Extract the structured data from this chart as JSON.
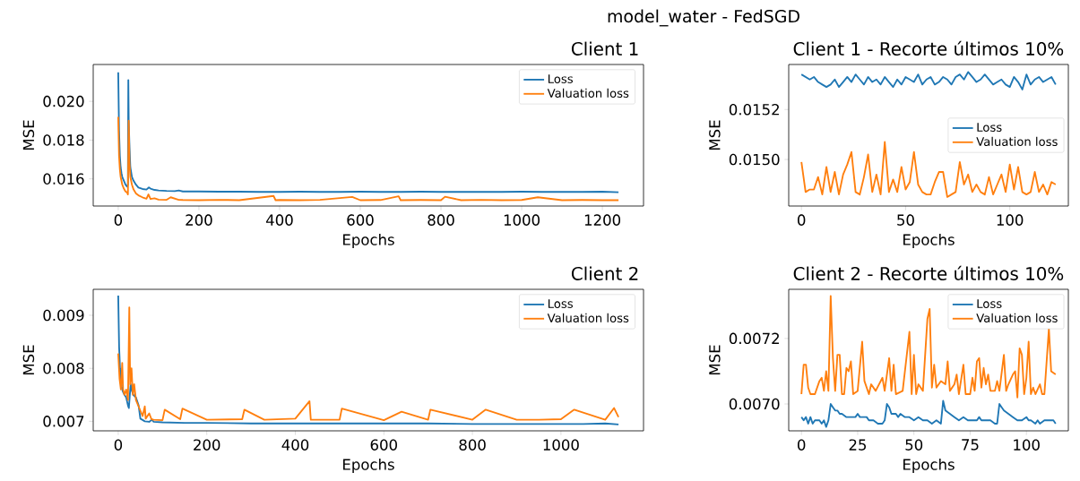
{
  "chart_data": [
    {
      "type": "line",
      "title": "Client 1",
      "xlabel": "Epochs",
      "ylabel": "MSE",
      "annotations": [
        "model_water - FedSGD"
      ],
      "legend": "top right",
      "xlim": [
        -62,
        1302
      ],
      "ylim": [
        0.0146,
        0.0219
      ],
      "xticks": [
        0,
        200,
        400,
        600,
        800,
        1000,
        1200
      ],
      "yticks": [
        0.016,
        0.018,
        {
          "value": 0.02,
          "label": "0.020"
        }
      ],
      "series": [
        {
          "name": "Loss",
          "color": "#1f77b4",
          "x": [
            0,
            2,
            4,
            6,
            8,
            10,
            14,
            18,
            22,
            24,
            25,
            26,
            28,
            30,
            34,
            38,
            44,
            50,
            60,
            70,
            76,
            80,
            90,
            100,
            120,
            140,
            150,
            160,
            200,
            250,
            300,
            350,
            400,
            450,
            500,
            550,
            600,
            650,
            700,
            750,
            800,
            850,
            900,
            950,
            1000,
            1050,
            1100,
            1150,
            1200,
            1240
          ],
          "values": [
            0.0215,
            0.0185,
            0.0172,
            0.0166,
            0.0163,
            0.0161,
            0.0159,
            0.0157,
            0.0156,
            0.0157,
            0.0211,
            0.019,
            0.0176,
            0.0166,
            0.0161,
            0.0159,
            0.0157,
            0.01555,
            0.01548,
            0.01545,
            0.01556,
            0.0155,
            0.01543,
            0.0154,
            0.01538,
            0.01537,
            0.0154,
            0.01535,
            0.01535,
            0.01534,
            0.01534,
            0.01533,
            0.01533,
            0.01534,
            0.01533,
            0.01533,
            0.01534,
            0.01533,
            0.01533,
            0.01534,
            0.01533,
            0.01533,
            0.01533,
            0.01533,
            0.01534,
            0.01533,
            0.01533,
            0.01533,
            0.01534,
            0.01531
          ]
        },
        {
          "name": "Valuation loss",
          "color": "#ff7f0e",
          "x": [
            0,
            2,
            4,
            6,
            8,
            10,
            14,
            18,
            22,
            24,
            26,
            28,
            30,
            34,
            38,
            44,
            50,
            60,
            70,
            75,
            80,
            90,
            100,
            120,
            130,
            150,
            160,
            200,
            250,
            300,
            385,
            390,
            400,
            450,
            500,
            580,
            600,
            650,
            695,
            700,
            750,
            800,
            810,
            850,
            900,
            950,
            1000,
            1040,
            1100,
            1150,
            1200,
            1240
          ],
          "values": [
            0.0192,
            0.0172,
            0.0165,
            0.0161,
            0.0159,
            0.0157,
            0.0155,
            0.01535,
            0.0153,
            0.0152,
            0.019,
            0.0168,
            0.0161,
            0.0157,
            0.01545,
            0.01525,
            0.01515,
            0.01505,
            0.01498,
            0.0152,
            0.01496,
            0.015,
            0.01493,
            0.01492,
            0.01505,
            0.01492,
            0.01491,
            0.0149,
            0.01492,
            0.0149,
            0.01512,
            0.0149,
            0.01491,
            0.0149,
            0.01492,
            0.01507,
            0.0149,
            0.01491,
            0.0151,
            0.0149,
            0.01491,
            0.0149,
            0.01508,
            0.0149,
            0.01492,
            0.0149,
            0.01491,
            0.01505,
            0.0149,
            0.01491,
            0.0149,
            0.0149
          ]
        }
      ]
    },
    {
      "type": "line",
      "title": "Client 1 - Recorte últimos 10%",
      "xlabel": "Epochs",
      "ylabel": "MSE",
      "legend": "right",
      "xlim": [
        -6.1,
        128.1
      ],
      "ylim": [
        0.014814,
        0.01538
      ],
      "xticks": [
        0,
        50,
        100
      ],
      "yticks": [
        {
          "value": 0.015,
          "label": "0.0150"
        },
        0.0152
      ],
      "series": [
        {
          "name": "Loss",
          "color": "#1f77b4",
          "x": [
            0,
            2,
            4,
            6,
            8,
            10,
            12,
            14,
            16,
            18,
            20,
            22,
            24,
            26,
            28,
            30,
            32,
            34,
            36,
            38,
            40,
            42,
            44,
            46,
            48,
            50,
            52,
            54,
            56,
            58,
            60,
            62,
            64,
            66,
            68,
            70,
            72,
            74,
            76,
            78,
            80,
            82,
            84,
            86,
            88,
            90,
            92,
            94,
            96,
            98,
            100,
            102,
            104,
            106,
            108,
            110,
            112,
            114,
            116,
            118,
            120,
            122
          ],
          "values": [
            0.01534,
            0.01533,
            0.01532,
            0.01533,
            0.01531,
            0.0153,
            0.01529,
            0.0153,
            0.01532,
            0.01529,
            0.01531,
            0.01533,
            0.01531,
            0.01534,
            0.01532,
            0.0153,
            0.01533,
            0.01531,
            0.01532,
            0.0153,
            0.01533,
            0.01531,
            0.01529,
            0.01532,
            0.0153,
            0.01533,
            0.01532,
            0.01531,
            0.01534,
            0.0153,
            0.01532,
            0.01533,
            0.0153,
            0.01531,
            0.01533,
            0.01532,
            0.0153,
            0.01533,
            0.01534,
            0.01532,
            0.01535,
            0.01533,
            0.01531,
            0.01532,
            0.01534,
            0.01532,
            0.0153,
            0.01531,
            0.01532,
            0.0153,
            0.01529,
            0.01533,
            0.01531,
            0.01528,
            0.01534,
            0.0153,
            0.01532,
            0.01533,
            0.01531,
            0.01532,
            0.01533,
            0.0153
          ]
        },
        {
          "name": "Valuation loss",
          "color": "#ff7f0e",
          "x": [
            0,
            2,
            4,
            6,
            8,
            10,
            12,
            14,
            16,
            18,
            20,
            22,
            24,
            26,
            28,
            30,
            32,
            34,
            36,
            38,
            40,
            42,
            44,
            46,
            48,
            50,
            52,
            54,
            56,
            58,
            60,
            62,
            64,
            66,
            68,
            70,
            72,
            74,
            76,
            78,
            80,
            82,
            84,
            86,
            88,
            90,
            92,
            94,
            96,
            98,
            100,
            102,
            104,
            106,
            108,
            110,
            112,
            114,
            116,
            118,
            120,
            122
          ],
          "values": [
            0.01499,
            0.01487,
            0.01488,
            0.01488,
            0.01493,
            0.01486,
            0.01497,
            0.01487,
            0.01495,
            0.01486,
            0.01494,
            0.01498,
            0.01503,
            0.01487,
            0.01486,
            0.01493,
            0.01502,
            0.01487,
            0.01494,
            0.01486,
            0.01507,
            0.01487,
            0.01492,
            0.01487,
            0.01497,
            0.01488,
            0.01491,
            0.01503,
            0.0149,
            0.01487,
            0.01486,
            0.01486,
            0.01491,
            0.01495,
            0.01495,
            0.01485,
            0.01486,
            0.01487,
            0.01499,
            0.0149,
            0.01494,
            0.01487,
            0.0149,
            0.01487,
            0.01486,
            0.01493,
            0.01486,
            0.0149,
            0.01494,
            0.01487,
            0.01498,
            0.01488,
            0.01497,
            0.01487,
            0.01486,
            0.01487,
            0.01495,
            0.01487,
            0.0149,
            0.01486,
            0.01491,
            0.0149
          ]
        }
      ]
    },
    {
      "type": "line",
      "title": "Client 2",
      "xlabel": "Epochs",
      "ylabel": "MSE",
      "legend": "top right",
      "xlim": [
        -56.5,
        1186.5
      ],
      "ylim": [
        0.00682,
        0.00949
      ],
      "xticks": [
        0,
        200,
        400,
        600,
        800,
        1000
      ],
      "yticks": [
        0.007,
        0.008,
        0.009
      ],
      "series": [
        {
          "name": "Loss",
          "color": "#1f77b4",
          "x": [
            0,
            2,
            4,
            6,
            8,
            10,
            14,
            18,
            22,
            24,
            25,
            26,
            28,
            30,
            34,
            40,
            46,
            50,
            56,
            60,
            70,
            76,
            80,
            100,
            150,
            200,
            300,
            400,
            500,
            600,
            700,
            800,
            900,
            1000,
            1050,
            1100,
            1130
          ],
          "values": [
            0.00937,
            0.0084,
            0.008,
            0.0078,
            0.00765,
            0.00757,
            0.0075,
            0.00745,
            0.0073,
            0.00725,
            null,
            null,
            0.0077,
            0.0076,
            0.0075,
            0.00745,
            0.0073,
            0.00705,
            0.00702,
            0.007,
            0.00699,
            0.00703,
            0.00699,
            0.00698,
            0.00697,
            0.00697,
            0.00696,
            0.00696,
            0.00696,
            0.00696,
            0.00696,
            0.00695,
            0.00695,
            0.00695,
            0.00695,
            0.00696,
            0.00694
          ]
        },
        {
          "name": "Valuation loss",
          "color": "#ff7f0e",
          "x": [
            0,
            3,
            6,
            9,
            11,
            14,
            18,
            22,
            25,
            27,
            30,
            33,
            36,
            40,
            45,
            50,
            55,
            60,
            62,
            70,
            75,
            80,
            100,
            105,
            140,
            145,
            200,
            280,
            285,
            330,
            400,
            432,
            435,
            500,
            505,
            600,
            640,
            700,
            705,
            800,
            830,
            900,
            950,
            1000,
            1030,
            1100,
            1120,
            1130
          ],
          "values": [
            0.00828,
            0.0078,
            0.0076,
            0.0081,
            0.0076,
            0.0075,
            0.0076,
            0.0074,
            0.00915,
            0.0077,
            0.008,
            0.0075,
            0.0077,
            0.0074,
            0.0073,
            0.0072,
            0.0071,
            0.00728,
            0.00705,
            0.00715,
            0.00704,
            0.00703,
            0.00702,
            0.00722,
            0.00704,
            0.00724,
            0.00703,
            0.00704,
            0.00722,
            0.00703,
            0.00705,
            0.00738,
            0.00703,
            0.00703,
            0.00724,
            0.00702,
            0.00718,
            0.00703,
            0.00722,
            0.00703,
            0.00722,
            0.00703,
            0.00703,
            0.00704,
            0.00722,
            0.00703,
            0.00725,
            0.00708
          ]
        }
      ]
    },
    {
      "type": "line",
      "title": "Client 2 - Recorte últimos 10%",
      "xlabel": "Epochs",
      "ylabel": "MSE",
      "legend": "top right",
      "xlim": [
        -5.65,
        118.65
      ],
      "ylim": [
        0.006918,
        0.00735
      ],
      "xticks": [
        0,
        25,
        50,
        75,
        100
      ],
      "yticks": [
        {
          "value": 0.007,
          "label": "0.0070"
        },
        0.0072
      ],
      "series": [
        {
          "name": "Loss",
          "color": "#1f77b4",
          "x": [
            0,
            1,
            2,
            3,
            4,
            5,
            6,
            8,
            9,
            10,
            11,
            12,
            13,
            14,
            15,
            16,
            17,
            18,
            20,
            22,
            24,
            25,
            26,
            28,
            29,
            30,
            32,
            34,
            36,
            37,
            38,
            39,
            40,
            42,
            43,
            44,
            46,
            48,
            50,
            52,
            54,
            56,
            58,
            60,
            62,
            63,
            64,
            66,
            68,
            70,
            72,
            74,
            76,
            78,
            79,
            80,
            82,
            84,
            86,
            87,
            88,
            89,
            90,
            92,
            94,
            96,
            98,
            100,
            101,
            102,
            104,
            105,
            106,
            108,
            110,
            111,
            112,
            113
          ],
          "values": [
            0.00696,
            0.00695,
            0.00696,
            0.00694,
            0.00696,
            0.00694,
            0.00695,
            0.00695,
            0.00694,
            0.00695,
            0.00693,
            0.00695,
            0.007,
            0.00699,
            0.00698,
            0.00698,
            0.00697,
            0.00697,
            0.00696,
            0.00696,
            0.00696,
            0.00697,
            0.00696,
            0.00696,
            0.00696,
            0.00695,
            0.00695,
            0.00694,
            0.00694,
            0.00695,
            0.007,
            0.00699,
            0.00697,
            0.00697,
            0.00696,
            0.00697,
            0.00696,
            0.00696,
            0.00695,
            0.00696,
            0.00695,
            0.00695,
            0.00694,
            0.00695,
            0.00694,
            0.00701,
            0.00698,
            0.00697,
            0.00696,
            0.00695,
            0.00696,
            0.00695,
            0.00695,
            0.00695,
            0.00696,
            0.00695,
            0.00695,
            0.00695,
            0.00694,
            0.00694,
            0.007,
            0.00699,
            0.00698,
            0.00697,
            0.00696,
            0.00695,
            0.00695,
            0.00696,
            0.00695,
            0.00695,
            0.00694,
            0.00695,
            0.00694,
            0.00695,
            0.00695,
            0.00695,
            0.00695,
            0.00694
          ]
        },
        {
          "name": "Valuation loss",
          "color": "#ff7f0e",
          "x": [
            0,
            1,
            2,
            3,
            4,
            6,
            8,
            9,
            10,
            11,
            12,
            13,
            14,
            15,
            16,
            17,
            18,
            19,
            20,
            21,
            22,
            23,
            25,
            27,
            28,
            30,
            31,
            33,
            36,
            37,
            39,
            40,
            41,
            42,
            45,
            48,
            49,
            50,
            51,
            52,
            54,
            56,
            57,
            58,
            59,
            60,
            62,
            64,
            65,
            66,
            68,
            69,
            70,
            72,
            73,
            75,
            76,
            77,
            78,
            79,
            80,
            81,
            82,
            83,
            84,
            86,
            87,
            88,
            90,
            91,
            92,
            94,
            95,
            96,
            97,
            98,
            99,
            100,
            101,
            102,
            103,
            104,
            106,
            107,
            108,
            110,
            111,
            113
          ],
          "values": [
            0.00703,
            0.00712,
            0.00712,
            0.00705,
            0.00703,
            0.00703,
            0.00707,
            0.00708,
            0.00704,
            0.0071,
            0.00704,
            0.00733,
            0.00714,
            0.00704,
            0.00715,
            0.00715,
            0.00703,
            0.00703,
            0.00711,
            0.0071,
            0.00713,
            0.00703,
            0.00704,
            0.00719,
            0.00707,
            0.00703,
            0.00706,
            0.00704,
            0.00708,
            0.00704,
            0.00714,
            0.00704,
            0.00712,
            0.00703,
            0.00704,
            0.00722,
            0.00703,
            0.00715,
            0.00703,
            0.00706,
            0.00704,
            0.00726,
            0.00729,
            0.00705,
            0.00712,
            0.00705,
            0.00707,
            0.00706,
            0.00713,
            0.00704,
            0.00706,
            0.00709,
            0.00703,
            0.00712,
            0.00703,
            0.00703,
            0.00708,
            0.00704,
            0.00713,
            0.00714,
            0.00705,
            0.00711,
            0.00706,
            0.00709,
            0.00704,
            0.00704,
            0.00707,
            0.00704,
            0.00715,
            0.00704,
            0.00706,
            0.00709,
            0.0071,
            0.00702,
            0.00717,
            0.00715,
            0.00703,
            0.00708,
            0.00719,
            0.00703,
            0.00705,
            0.00703,
            0.00706,
            0.00703,
            0.00703,
            0.00723,
            0.0071,
            0.00709
          ]
        }
      ]
    }
  ]
}
